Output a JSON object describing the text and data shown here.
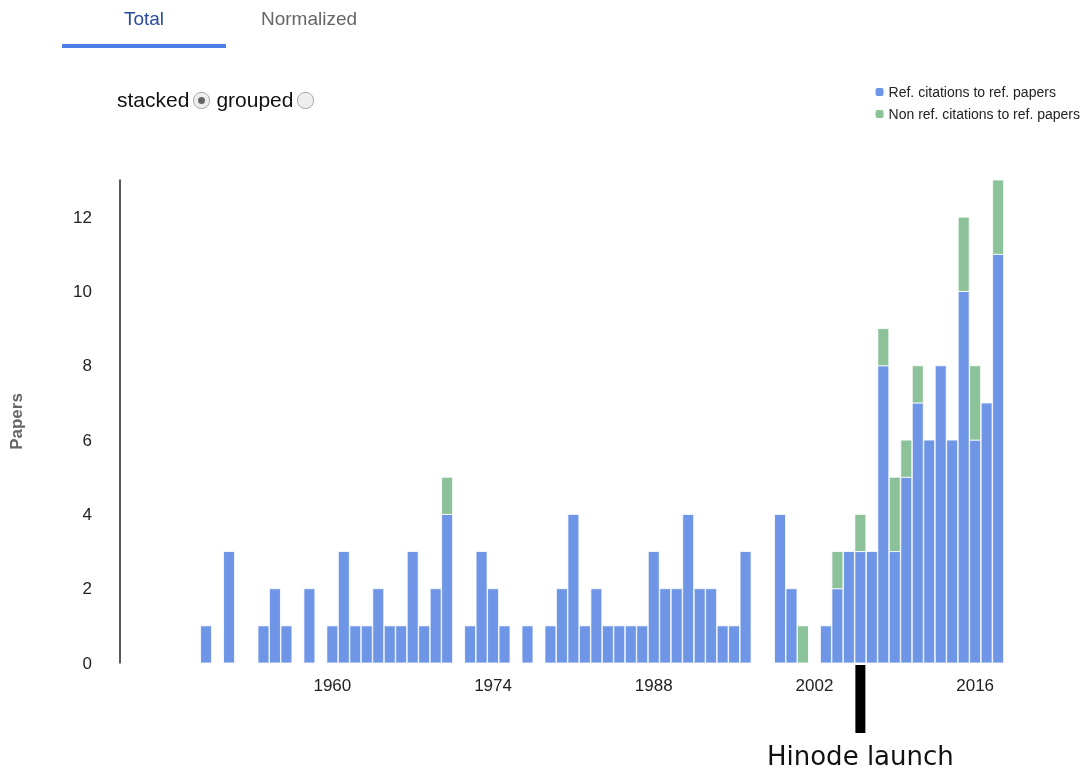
{
  "chart_data": {
    "type": "bar",
    "stacked": true,
    "ylabel": "Papers",
    "x": [
      1949,
      1951,
      1954,
      1955,
      1956,
      1958,
      1960,
      1961,
      1962,
      1963,
      1964,
      1965,
      1966,
      1967,
      1968,
      1969,
      1970,
      1972,
      1973,
      1974,
      1975,
      1977,
      1979,
      1980,
      1981,
      1982,
      1983,
      1984,
      1985,
      1986,
      1987,
      1988,
      1989,
      1990,
      1991,
      1992,
      1993,
      1994,
      1995,
      1996,
      1999,
      2000,
      2001,
      2003,
      2004,
      2005,
      2006,
      2007,
      2008,
      2009,
      2010,
      2011,
      2012,
      2013,
      2014,
      2015,
      2016,
      2017,
      2018
    ],
    "series": [
      {
        "name": "Ref. citations to ref. papers",
        "color": "#6f96e6",
        "values": [
          1,
          3,
          1,
          2,
          1,
          2,
          1,
          3,
          1,
          1,
          2,
          1,
          1,
          3,
          1,
          2,
          4,
          1,
          3,
          2,
          1,
          1,
          1,
          2,
          4,
          1,
          2,
          1,
          1,
          1,
          1,
          3,
          2,
          2,
          4,
          2,
          2,
          1,
          1,
          3,
          4,
          2,
          0,
          1,
          2,
          3,
          3,
          3,
          8,
          3,
          5,
          7,
          6,
          8,
          6,
          10,
          6,
          7,
          11
        ]
      },
      {
        "name": "Non ref. citations to ref. papers",
        "color": "#8cc29a",
        "values": [
          null,
          null,
          null,
          null,
          null,
          null,
          null,
          null,
          null,
          null,
          null,
          null,
          null,
          null,
          null,
          null,
          1,
          null,
          null,
          null,
          null,
          null,
          null,
          null,
          null,
          null,
          null,
          null,
          null,
          null,
          null,
          null,
          null,
          null,
          null,
          null,
          null,
          null,
          null,
          null,
          null,
          null,
          1,
          null,
          1,
          null,
          1,
          null,
          1,
          2,
          1,
          1,
          null,
          null,
          null,
          2,
          2,
          null,
          2
        ]
      }
    ],
    "xlim": [
      1941.5,
      2018.6
    ],
    "xticks": [
      1960,
      1974,
      1988,
      2002,
      2016
    ],
    "ylim": [
      0,
      13
    ],
    "yticks": [
      0,
      2,
      4,
      6,
      8,
      10,
      12
    ],
    "grid": false,
    "legend": "top right",
    "ref_lines": [
      {
        "axis": "x",
        "value": 2006,
        "label": "Hinode launch",
        "color": "#000000"
      }
    ],
    "annotations": [
      "Total",
      "Normalized",
      "stacked",
      "grouped"
    ]
  }
}
